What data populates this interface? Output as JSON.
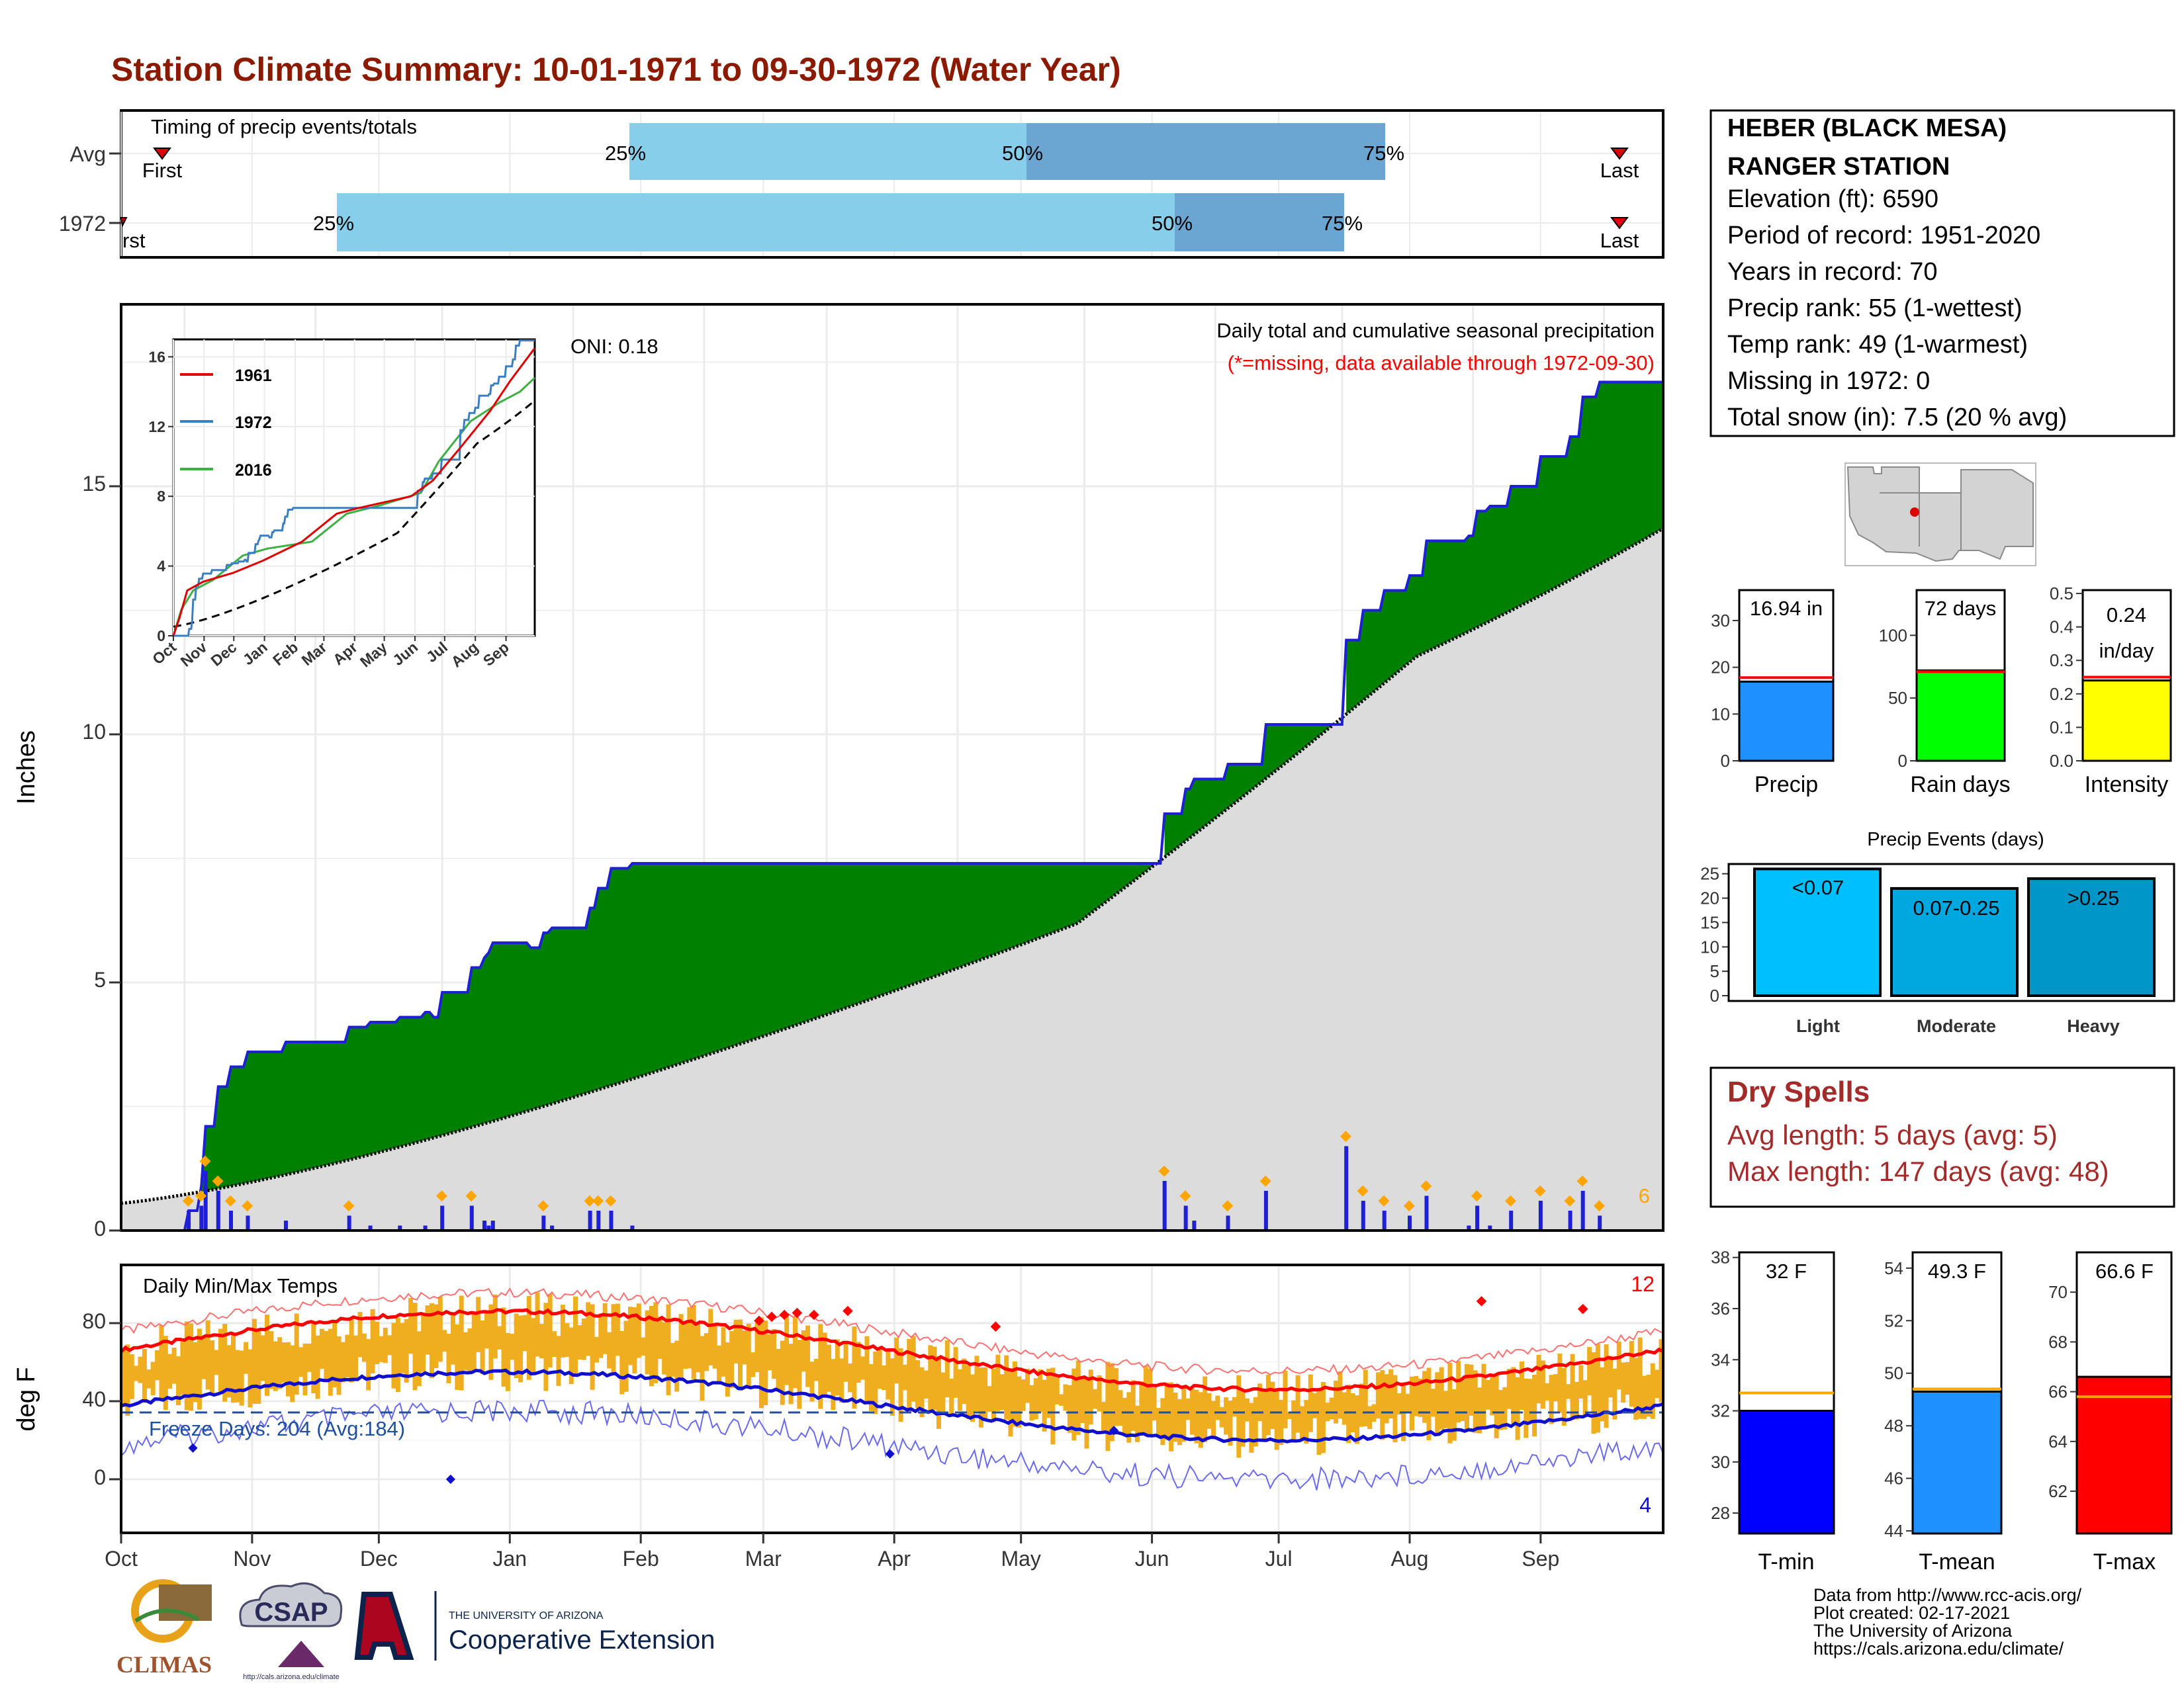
{
  "title": "Station Climate Summary: 10-01-1971 to 09-30-1972 (Water Year)",
  "colors": {
    "title": "#8b1a00",
    "green": "#008000",
    "brown": "#7a4a0a",
    "gray_fill": "#dcdcdc",
    "blue_line": "#1f1fd6",
    "light_blue": "#87ceeb",
    "mid_blue": "#6aa6d1",
    "red": "#ff0000",
    "orange_bar": "#efae1f",
    "dry_spells": "#a52a2a"
  },
  "timing": {
    "label": "Timing of precip events/totals",
    "rows": [
      "Avg",
      "1972"
    ],
    "first_label": "First",
    "first_label_1972": "rst",
    "last_label": "Last",
    "pct_labels": [
      "25%",
      "50%",
      "75%"
    ]
  },
  "main": {
    "y_axis_label": "Inches",
    "y_ticks": [
      "0",
      "5",
      "10",
      "15"
    ],
    "oni_text": "ONI: 0.18",
    "subtitle": "Daily total and cumulative seasonal precipitation",
    "missing_note": "(*=missing, data available through 1972-09-30)",
    "count_label": "6"
  },
  "inset": {
    "y_ticks": [
      "0",
      "4",
      "8",
      "12",
      "16"
    ],
    "x_ticks": [
      "Oct",
      "Nov",
      "Dec",
      "Jan",
      "Feb",
      "Mar",
      "Apr",
      "May",
      "Jun",
      "Jul",
      "Aug",
      "Sep"
    ],
    "legend": [
      "1961",
      "1972",
      "2016"
    ]
  },
  "temps": {
    "label": "Daily Min/Max Temps",
    "y_axis_label": "deg F",
    "y_ticks": [
      "0",
      "40",
      "80"
    ],
    "freeze_text": "Freeze Days: 204 (Avg:184)",
    "record_high_count": "12",
    "record_low_count": "4"
  },
  "months": [
    "Oct",
    "Nov",
    "Dec",
    "Jan",
    "Feb",
    "Mar",
    "Apr",
    "May",
    "Jun",
    "Jul",
    "Aug",
    "Sep"
  ],
  "station": {
    "name_line1": "HEBER (BLACK MESA)",
    "name_line2": "RANGER STATION",
    "lines": [
      "Elevation (ft): 6590",
      "Period of record: 1951-2020",
      "Years in record: 70",
      "Precip rank: 55 (1-wettest)",
      "Temp rank: 49 (1-warmest)",
      "Missing in 1972: 0",
      "Total snow (in): 7.5 (20 % avg)"
    ]
  },
  "mini_bars": {
    "precip": {
      "label": "Precip",
      "value_text": "16.94 in",
      "ticks": [
        "0",
        "10",
        "20",
        "30"
      ]
    },
    "rain_days": {
      "label": "Rain days",
      "value_text": "72 days",
      "ticks": [
        "0",
        "50",
        "100"
      ]
    },
    "intensity": {
      "label": "Intensity",
      "value_text": "0.24",
      "value_unit": "in/day",
      "ticks": [
        "0.0",
        "0.1",
        "0.2",
        "0.3",
        "0.4",
        "0.5"
      ]
    }
  },
  "events": {
    "title": "Precip Events (days)",
    "ticks": [
      "0",
      "5",
      "10",
      "15",
      "20",
      "25"
    ],
    "bars": [
      {
        "range": "<0.07",
        "category": "Light"
      },
      {
        "range": "0.07-0.25",
        "category": "Moderate"
      },
      {
        "range": ">0.25",
        "category": "Heavy"
      }
    ]
  },
  "dry_spells": {
    "title": "Dry Spells",
    "avg_line": "Avg length: 5 days (avg: 5)",
    "max_line": "Max length: 147 days (avg: 48)"
  },
  "temp_bars": {
    "tmin": {
      "label": "T-min",
      "value_text": "32 F",
      "ticks": [
        "28",
        "30",
        "32",
        "34",
        "36",
        "38"
      ]
    },
    "tmean": {
      "label": "T-mean",
      "value_text": "49.3 F",
      "ticks": [
        "44",
        "46",
        "48",
        "50",
        "52",
        "54"
      ]
    },
    "tmax": {
      "label": "T-max",
      "value_text": "66.6 F",
      "ticks": [
        "62",
        "64",
        "66",
        "68",
        "70"
      ]
    }
  },
  "footer": {
    "lines": [
      "Data from http://www.rcc-acis.org/",
      "Plot created: 02-17-2021",
      "The University of Arizona",
      "https://cals.arizona.edu/climate/"
    ],
    "logo_climas": "CLIMAS",
    "logo_csap": "CSAP",
    "logo_csap_url": "http://cals.arizona.edu/climate",
    "ua_small": "THE UNIVERSITY OF ARIZONA",
    "ua_big": "Cooperative Extension"
  },
  "chart_data": [
    {
      "type": "area",
      "title": "Daily total and cumulative seasonal precipitation",
      "ylabel": "Inches",
      "ylim": [
        0,
        18.5
      ],
      "x_unit": "day of water year",
      "series": [
        {
          "values_x": [
            0,
            16,
            19,
            20,
            22,
            23,
            26,
            30,
            39,
            48,
            52,
            54,
            59,
            62,
            66,
            72,
            74,
            76,
            83,
            86,
            87,
            88,
            97,
            100,
            102,
            108,
            109,
            111,
            113,
            116,
            121,
            123,
            127,
            130,
            131,
            138,
            140,
            142,
            156,
            160,
            203,
            212,
            230,
            242,
            245,
            247,
            252,
            254,
            256,
            262,
            271,
            275,
            277,
            282,
            284,
            287,
            290,
            294,
            299,
            305,
            309,
            319,
            321,
            322,
            324,
            327,
            329,
            330,
            332,
            336,
            343,
            346,
            350,
            353,
            365
          ],
          "values": [
            0.0,
            0.4,
            0.9,
            2.1,
            2.1,
            2.9,
            3.3,
            3.6,
            3.8,
            3.8,
            3.8,
            4.1,
            4.2,
            4.2,
            4.3,
            4.4,
            4.3,
            4.8,
            5.3,
            5.5,
            5.6,
            5.8,
            5.7,
            6.0,
            6.1,
            6.1,
            6.1,
            6.5,
            6.9,
            7.3,
            7.4,
            7.4,
            7.4,
            7.4,
            7.4,
            7.4,
            7.4,
            7.4,
            7.4,
            7.4,
            7.4,
            7.4,
            7.4,
            7.4,
            7.4,
            8.4,
            8.9,
            9.1,
            9.1,
            9.4,
            10.2,
            10.2,
            10.2,
            10.2,
            10.2,
            10.2,
            11.9,
            12.5,
            12.9,
            13.2,
            13.9,
            14.0,
            14.5,
            14.5,
            14.6,
            14.6,
            15.0,
            15.0,
            15.0,
            15.6,
            16.0,
            16.8,
            17.1,
            17.1,
            17.1
          ]
        }
      ]
    },
    {
      "type": "bar",
      "title": "Precip Events (days)",
      "categories": [
        "Light",
        "Moderate",
        "Heavy"
      ],
      "values": [
        26,
        22,
        24
      ],
      "ylim": [
        0,
        27
      ]
    },
    {
      "type": "bar",
      "categories": [
        "Precip",
        "Rain days",
        "Intensity"
      ],
      "values": [
        16.94,
        72,
        0.24
      ],
      "averages": [
        17.8,
        71,
        0.25
      ]
    },
    {
      "type": "bar",
      "categories": [
        "T-min",
        "T-mean",
        "T-max"
      ],
      "values": [
        32,
        49.3,
        66.6
      ],
      "averages": [
        32.7,
        49.4,
        65.8
      ]
    }
  ]
}
